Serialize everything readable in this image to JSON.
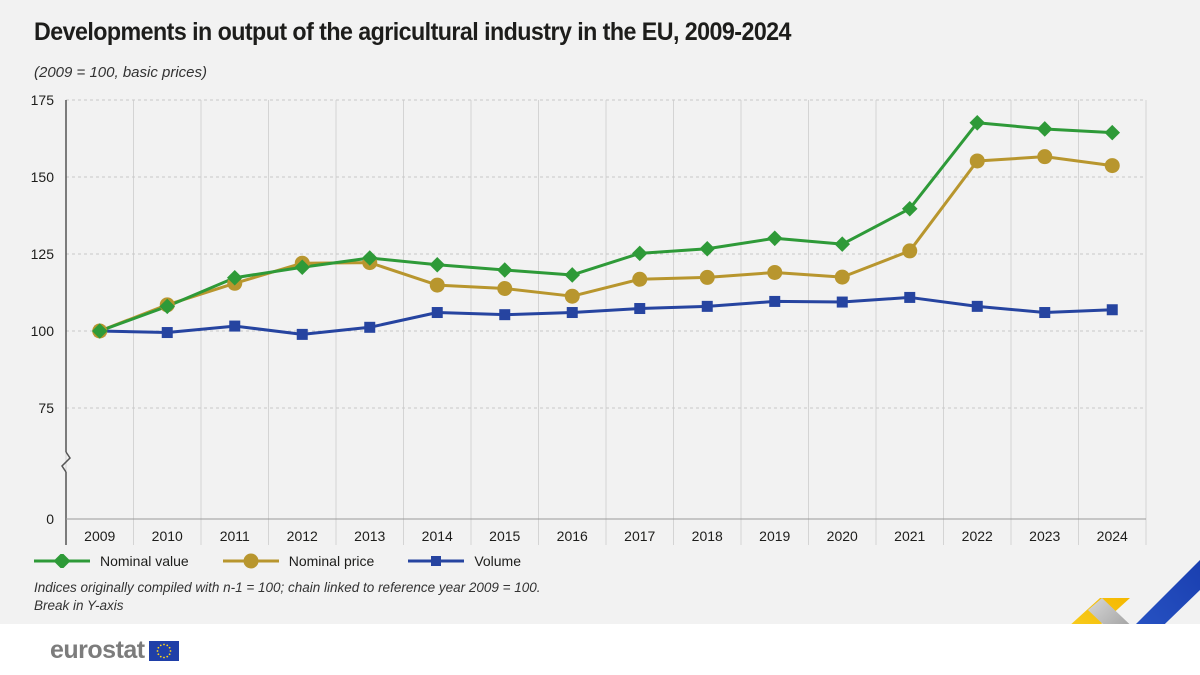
{
  "title": "Developments in output of the agricultural industry in the EU, 2009-2024",
  "subtitle": "(2009 = 100, basic prices)",
  "footnotes": [
    "Indices originally compiled with n-1 = 100; chain linked to reference year 2009 = 100.",
    "Break in Y-axis"
  ],
  "logo": {
    "text": "eurostat",
    "icon": "eu-flag-icon"
  },
  "colors": {
    "nominal_value": "#2e9a38",
    "nominal_price": "#b8962e",
    "volume": "#2644a0",
    "grid": "#c8c8c8",
    "axis": "#555555"
  },
  "chart_data": {
    "type": "line",
    "title": "Developments in output of the agricultural industry in the EU, 2009-2024",
    "subtitle": "(2009 = 100, basic prices)",
    "x": [
      "2009",
      "2010",
      "2011",
      "2012",
      "2013",
      "2014",
      "2015",
      "2016",
      "2017",
      "2018",
      "2019",
      "2020",
      "2021",
      "2022",
      "2023",
      "2024"
    ],
    "y_ticks": [
      "0",
      "75",
      "100",
      "125",
      "150",
      "175"
    ],
    "ylim": [
      0,
      175
    ],
    "y_break": true,
    "grid": true,
    "legend_position": "bottom-left",
    "series": [
      {
        "name": "Nominal value",
        "marker": "diamond",
        "color": "#2e9a38",
        "values": [
          100,
          108,
          117.3,
          120.7,
          123.7,
          121.5,
          119.8,
          118.2,
          125.2,
          126.7,
          130.1,
          128.2,
          139.7,
          167.6,
          165.6,
          164.4
        ]
      },
      {
        "name": "Nominal price",
        "marker": "circle",
        "color": "#b8962e",
        "values": [
          100,
          108.5,
          115.5,
          122,
          122.2,
          114.9,
          113.8,
          111.3,
          116.8,
          117.4,
          119,
          117.5,
          126,
          155.2,
          156.6,
          153.7
        ]
      },
      {
        "name": "Volume",
        "marker": "square",
        "color": "#2644a0",
        "values": [
          100,
          99.5,
          101.6,
          98.9,
          101.2,
          106,
          105.3,
          106,
          107.3,
          108,
          109.6,
          109.4,
          110.9,
          108,
          106,
          106.9
        ]
      }
    ]
  }
}
